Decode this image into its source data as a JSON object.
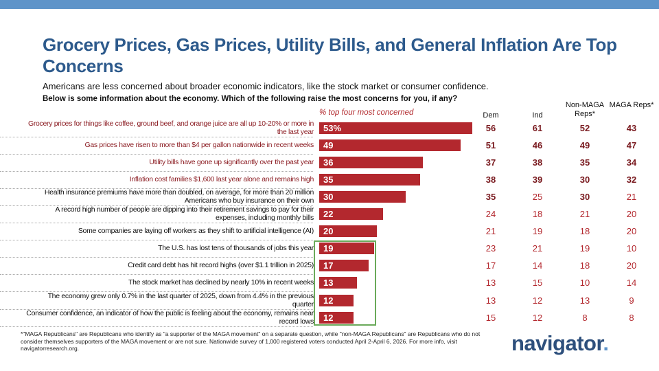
{
  "header": {
    "title": "Grocery Prices, Gas Prices, Utility Bills, and General Inflation Are Top Concerns",
    "subtitle": "Americans are less concerned about broader economic indicators, like the stock market or consumer confidence.",
    "question": "Below is some information about the economy. Which of the following raise the most concerns for you, if any?"
  },
  "colors": {
    "bar": "#b3282e",
    "title": "#2d5a8c",
    "highlight_box": "#6aaa5a",
    "top_bar": "#5e94c9"
  },
  "chart_data": {
    "type": "bar",
    "orientation": "horizontal",
    "xlabel": "% top four most concerned",
    "columns": [
      "Dem",
      "Ind",
      "Non-MAGA Reps*",
      "MAGA Reps*"
    ],
    "rows": [
      {
        "label": "Grocery prices for things like coffee, ground beef, and orange juice are all up 10-20% or more in the last year",
        "value": 53,
        "display": "53%",
        "groups": [
          56,
          61,
          52,
          43
        ],
        "bold": [
          1,
          1,
          1,
          1
        ],
        "label_red": true
      },
      {
        "label": "Gas prices have risen to more than $4 per gallon nationwide in recent weeks",
        "value": 49,
        "display": "49",
        "groups": [
          51,
          46,
          49,
          47
        ],
        "bold": [
          1,
          1,
          1,
          1
        ],
        "label_red": true
      },
      {
        "label": "Utility bills have gone up significantly over the past year",
        "value": 36,
        "display": "36",
        "groups": [
          37,
          38,
          35,
          34
        ],
        "bold": [
          1,
          1,
          1,
          1
        ],
        "label_red": true
      },
      {
        "label": "Inflation cost families $1,600 last year alone and remains high",
        "value": 35,
        "display": "35",
        "groups": [
          38,
          39,
          30,
          32
        ],
        "bold": [
          1,
          1,
          1,
          1
        ],
        "label_red": true
      },
      {
        "label": "Health insurance premiums have more than doubled, on average, for more than 20 million Americans who buy insurance on their own",
        "value": 30,
        "display": "30",
        "groups": [
          35,
          25,
          30,
          21
        ],
        "bold": [
          1,
          0,
          1,
          0
        ],
        "label_red": false
      },
      {
        "label": "A record high number of people are dipping into their retirement savings to pay for their expenses, including monthly bills",
        "value": 22,
        "display": "22",
        "groups": [
          24,
          18,
          21,
          20
        ],
        "bold": [
          0,
          0,
          0,
          0
        ],
        "label_red": false
      },
      {
        "label": "Some companies are laying off workers as they shift to artificial intelligence (AI)",
        "value": 20,
        "display": "20",
        "groups": [
          21,
          19,
          18,
          20
        ],
        "bold": [
          0,
          0,
          0,
          0
        ],
        "label_red": false
      },
      {
        "label": "The U.S. has lost tens of thousands of jobs this year",
        "value": 19,
        "display": "19",
        "groups": [
          23,
          21,
          19,
          10
        ],
        "bold": [
          0,
          0,
          0,
          0
        ],
        "label_red": false
      },
      {
        "label": "Credit card debt has hit record highs (over $1.1 trillion in 2025)",
        "value": 17,
        "display": "17",
        "groups": [
          17,
          14,
          18,
          20
        ],
        "bold": [
          0,
          0,
          0,
          0
        ],
        "label_red": false
      },
      {
        "label": "The stock market has declined by nearly 10% in recent weeks",
        "value": 13,
        "display": "13",
        "groups": [
          13,
          15,
          10,
          14
        ],
        "bold": [
          0,
          0,
          0,
          0
        ],
        "label_red": false
      },
      {
        "label": "The economy grew only 0.7% in the last quarter of 2025, down from 4.4% in the previous quarter",
        "value": 12,
        "display": "12",
        "groups": [
          13,
          12,
          13,
          9
        ],
        "bold": [
          0,
          0,
          0,
          0
        ],
        "label_red": false
      },
      {
        "label": "Consumer confidence, an indicator of how the public is feeling about the economy, remains near record lows",
        "value": 12,
        "display": "12",
        "groups": [
          15,
          12,
          8,
          8
        ],
        "bold": [
          0,
          0,
          0,
          0
        ],
        "label_red": false
      }
    ],
    "highlighted_rows": [
      7,
      8,
      9,
      10,
      11
    ]
  },
  "footer": {
    "note": "*\"MAGA Republicans\" are Republicans who identify as \"a supporter of the MAGA movement\" on a separate question, while \"non-MAGA Republicans\" are Republicans who do not consider themselves supporters of the MAGA movement or are not sure. Nationwide survey of 1,000 registered voters conducted April 2-April 6, 2026. For more info, visit navigatorresearch.org.",
    "logo": "navigator"
  }
}
